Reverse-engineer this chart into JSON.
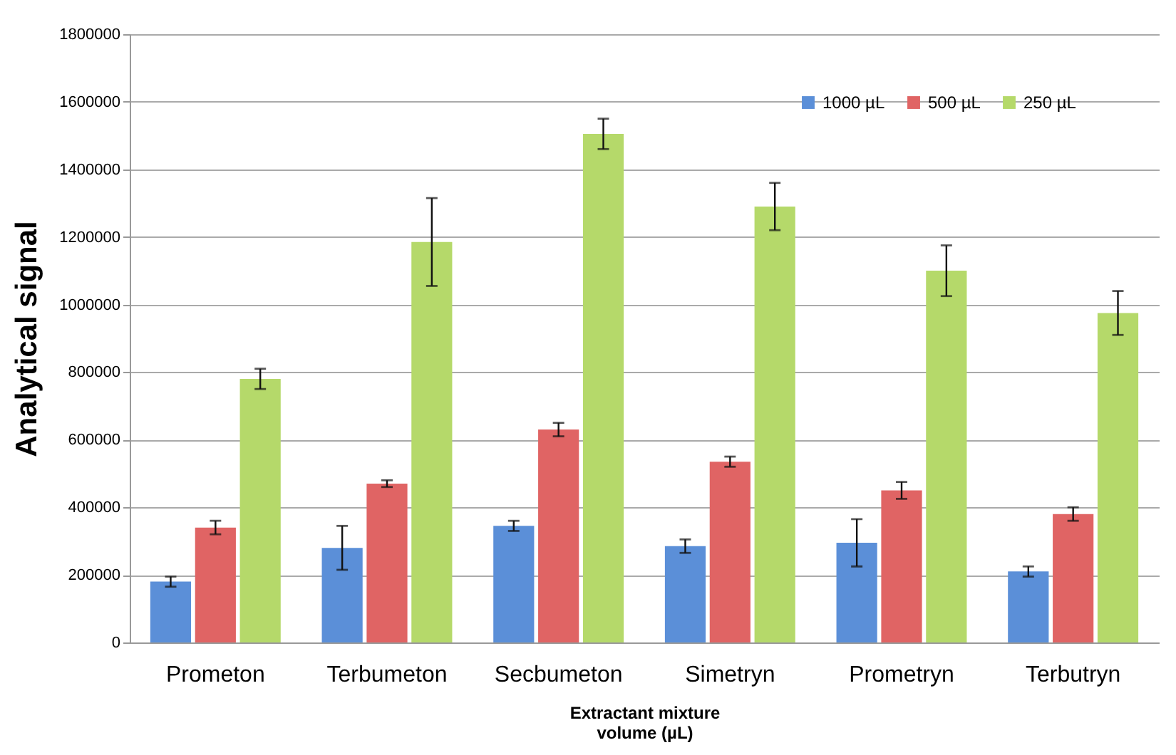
{
  "chart_data": {
    "type": "bar",
    "xlabel": "Extractant mixture volume (µL)",
    "ylabel": "Analytical signal",
    "categories": [
      "Prometon",
      "Terbumeton",
      "Secbumeton",
      "Simetryn",
      "Prometryn",
      "Terbutryn"
    ],
    "series": [
      {
        "name": "1000 µL",
        "color": "#5b8fd8",
        "values": [
          180000,
          280000,
          345000,
          285000,
          295000,
          210000
        ],
        "errors": [
          15000,
          65000,
          15000,
          20000,
          70000,
          15000
        ]
      },
      {
        "name": "500 µL",
        "color": "#e06464",
        "values": [
          340000,
          470000,
          630000,
          535000,
          450000,
          380000
        ],
        "errors": [
          20000,
          10000,
          20000,
          15000,
          25000,
          20000
        ]
      },
      {
        "name": "250 µL",
        "color": "#b5d96a",
        "values": [
          780000,
          1185000,
          1505000,
          1290000,
          1100000,
          975000
        ],
        "errors": [
          30000,
          130000,
          45000,
          70000,
          75000,
          65000
        ]
      }
    ],
    "ylim": [
      0,
      1800000
    ],
    "yticks": [
      0,
      200000,
      400000,
      600000,
      800000,
      1000000,
      1200000,
      1400000,
      1600000,
      1800000
    ],
    "grid": "y",
    "legend": "top right"
  }
}
